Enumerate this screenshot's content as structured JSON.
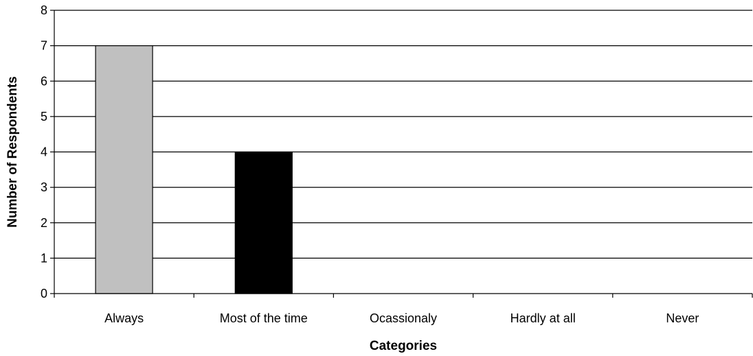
{
  "chart_data": {
    "type": "bar",
    "title": "",
    "xlabel": "Categories",
    "ylabel": "Number of Respondents",
    "categories": [
      "Always",
      "Most of the time",
      "Ocassionaly",
      "Hardly at all",
      "Never"
    ],
    "values": [
      7,
      4,
      0,
      0,
      0
    ],
    "bar_colors": [
      "#c0c0c0",
      "#000000",
      "#c0c0c0",
      "#c0c0c0",
      "#c0c0c0"
    ],
    "ylim": [
      0,
      8
    ],
    "yticks": [
      0,
      1,
      2,
      3,
      4,
      5,
      6,
      7,
      8
    ],
    "grid": true,
    "legend": "none"
  }
}
